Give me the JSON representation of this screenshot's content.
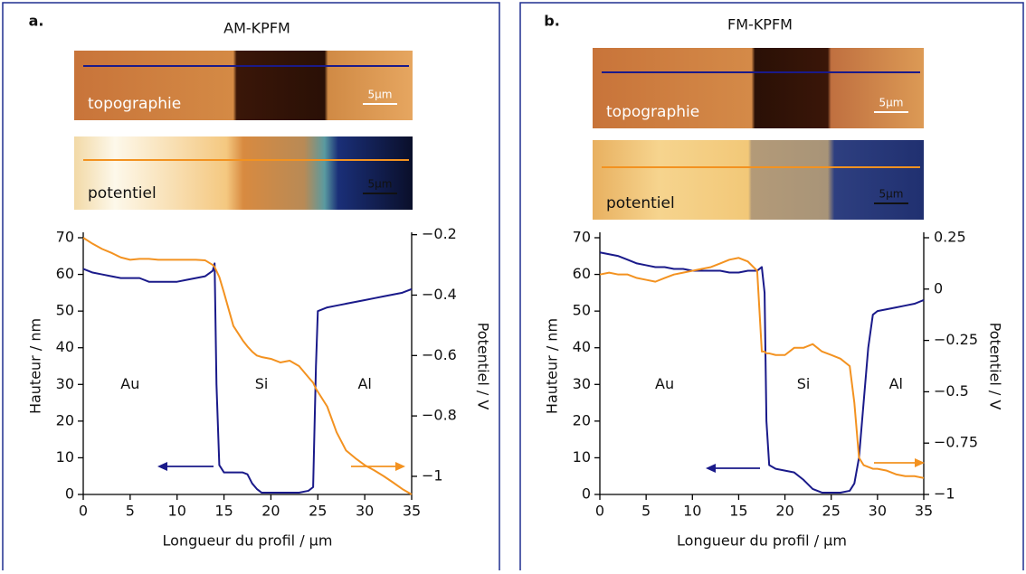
{
  "chart_data": [
    {
      "type": "line",
      "panel_label": "a.",
      "title": "AM-KPFM",
      "images": [
        {
          "label": "topographie",
          "scale_bar": "5µm"
        },
        {
          "label": "potentiel",
          "scale_bar": "5µm"
        }
      ],
      "x_label": "Longueur du profil / µm",
      "y_label": "Hauteur / nm",
      "y2_label": "Potentiel / V",
      "xlim": [
        0,
        35
      ],
      "xticks": [
        0,
        5,
        10,
        15,
        20,
        25,
        30,
        35
      ],
      "ylim": [
        0,
        70
      ],
      "yticks": [
        0,
        10,
        20,
        30,
        40,
        50,
        60,
        70
      ],
      "y2lim": [
        -1.06,
        -0.21
      ],
      "y2ticks": [
        {
          "value": -0.2,
          "label": "−0.2"
        },
        {
          "value": -0.4,
          "label": "−0.4"
        },
        {
          "value": -0.6,
          "label": "−0.6"
        },
        {
          "value": -0.8,
          "label": "−0.8"
        },
        {
          "value": -1,
          "label": "−1"
        }
      ],
      "annotations": [
        {
          "text": "Au",
          "x": 5,
          "y": 30
        },
        {
          "text": "Si",
          "x": 19,
          "y": 30
        },
        {
          "text": "Al",
          "x": 30,
          "y": 30
        }
      ],
      "x": [
        0,
        1,
        2,
        3,
        4,
        5,
        6,
        7,
        8,
        9,
        10,
        11,
        12,
        13,
        13.8,
        14,
        14.2,
        14.5,
        15,
        16,
        17,
        17.5,
        18,
        18.5,
        19,
        20,
        21,
        22,
        23,
        24,
        24.5,
        24.8,
        25,
        26,
        27,
        28,
        29,
        30,
        31,
        32,
        33,
        34,
        35
      ],
      "series": [
        {
          "color": "#1a1a8a",
          "axis": "y",
          "values": [
            61.5,
            60.5,
            60,
            59.5,
            59,
            59,
            59,
            58,
            58,
            58,
            58,
            58.5,
            59,
            59.5,
            61,
            63,
            30,
            8,
            6,
            6,
            6,
            5.5,
            3,
            1.5,
            0.5,
            0.5,
            0.5,
            0.5,
            0.5,
            1,
            2,
            35,
            50,
            51,
            51.5,
            52,
            52.5,
            53,
            53.5,
            54,
            54.5,
            55,
            56
          ]
        },
        {
          "color": "#f39220",
          "axis": "y2",
          "values": [
            -0.21,
            -0.23,
            -0.247,
            -0.26,
            -0.275,
            -0.283,
            -0.28,
            -0.28,
            -0.283,
            -0.283,
            -0.283,
            -0.283,
            -0.283,
            -0.285,
            -0.3,
            -0.307,
            -0.32,
            -0.34,
            -0.392,
            -0.502,
            -0.55,
            -0.57,
            -0.587,
            -0.6,
            -0.605,
            -0.611,
            -0.623,
            -0.617,
            -0.635,
            -0.672,
            -0.69,
            -0.71,
            -0.72,
            -0.769,
            -0.854,
            -0.914,
            -0.94,
            -0.963,
            -0.98,
            -0.999,
            -1.02,
            -1.042,
            -1.06
          ]
        }
      ]
    },
    {
      "type": "line",
      "panel_label": "b.",
      "title": "FM-KPFM",
      "images": [
        {
          "label": "topographie",
          "scale_bar": "5µm"
        },
        {
          "label": "potentiel",
          "scale_bar": "5µm"
        }
      ],
      "x_label": "Longueur du profil / µm",
      "y_label": "Hauteur / nm",
      "y2_label": "Potentiel / V",
      "xlim": [
        0,
        35
      ],
      "xticks": [
        0,
        5,
        10,
        15,
        20,
        25,
        30,
        35
      ],
      "ylim": [
        0,
        70
      ],
      "yticks": [
        0,
        10,
        20,
        30,
        40,
        50,
        60,
        70
      ],
      "y2lim": [
        -1,
        0.25
      ],
      "y2ticks": [
        0.25,
        0,
        {
          "value": -0.25,
          "label": "−0.25"
        },
        {
          "value": -0.5,
          "label": "−0.5"
        },
        {
          "value": -0.75,
          "label": "−0.75"
        },
        {
          "value": -1,
          "label": "−1"
        }
      ],
      "annotations": [
        {
          "text": "Au",
          "x": 7,
          "y": 30
        },
        {
          "text": "Si",
          "x": 22,
          "y": 30
        },
        {
          "text": "Al",
          "x": 32,
          "y": 30
        }
      ],
      "x": [
        0,
        1,
        2,
        3,
        4,
        5,
        6,
        7,
        8,
        9,
        10,
        11,
        12,
        13,
        14,
        15,
        16,
        17,
        17.5,
        17.8,
        18,
        18.3,
        19,
        20,
        21,
        22,
        23,
        24,
        25,
        26,
        27,
        27.5,
        28,
        28.5,
        29,
        29.5,
        30,
        31,
        32,
        33,
        34,
        35
      ],
      "series": [
        {
          "color": "#1a1a8a",
          "axis": "y",
          "values": [
            66,
            65.5,
            65,
            64,
            63,
            62.5,
            62,
            62,
            61.5,
            61.5,
            61,
            61,
            61,
            61,
            60.5,
            60.5,
            61,
            61,
            62,
            55,
            20,
            8,
            7,
            6.5,
            6,
            4,
            1.5,
            0.5,
            0.5,
            0.5,
            1,
            3,
            10,
            25,
            40,
            49,
            50,
            50.5,
            51,
            51.5,
            52,
            53
          ]
        },
        {
          "color": "#f39220",
          "axis": "y2",
          "values": [
            0.071,
            0.08,
            0.071,
            0.071,
            0.054,
            0.045,
            0.036,
            0.054,
            0.071,
            0.08,
            0.089,
            0.098,
            0.107,
            0.125,
            0.143,
            0.152,
            0.134,
            0.089,
            -0.304,
            -0.304,
            -0.313,
            -0.313,
            -0.321,
            -0.321,
            -0.286,
            -0.286,
            -0.268,
            -0.304,
            -0.321,
            -0.339,
            -0.375,
            -0.554,
            -0.821,
            -0.857,
            -0.866,
            -0.875,
            -0.875,
            -0.884,
            -0.902,
            -0.911,
            -0.911,
            -0.92
          ]
        }
      ]
    }
  ]
}
